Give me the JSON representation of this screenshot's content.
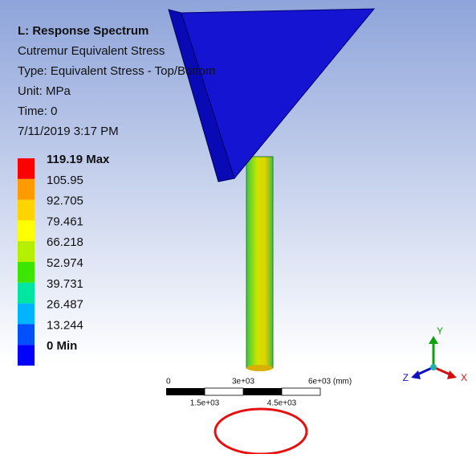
{
  "header": {
    "title": "L: Response Spectrum",
    "lines": [
      "Cutremur Equivalent Stress",
      "Type: Equivalent Stress - Top/Bottom",
      "Unit: MPa",
      "Time: 0",
      "7/11/2019 3:17 PM"
    ]
  },
  "legend": {
    "labels": [
      "119.19 Max",
      "105.95",
      "92.705",
      "79.461",
      "66.218",
      "52.974",
      "39.731",
      "26.487",
      "13.244",
      "0 Min"
    ],
    "colors": [
      "#ff0000",
      "#ff9a00",
      "#ffd400",
      "#ffff00",
      "#b4f000",
      "#3ce600",
      "#00e6a0",
      "#00b4ff",
      "#0050ff",
      "#0000ff"
    ]
  },
  "scale": {
    "top": [
      "0",
      "3e+03",
      "6e+03 (mm)"
    ],
    "bottom": [
      "1.5e+03",
      "4.5e+03"
    ]
  },
  "triad": {
    "y": "Y",
    "x": "X",
    "z": "Z"
  }
}
